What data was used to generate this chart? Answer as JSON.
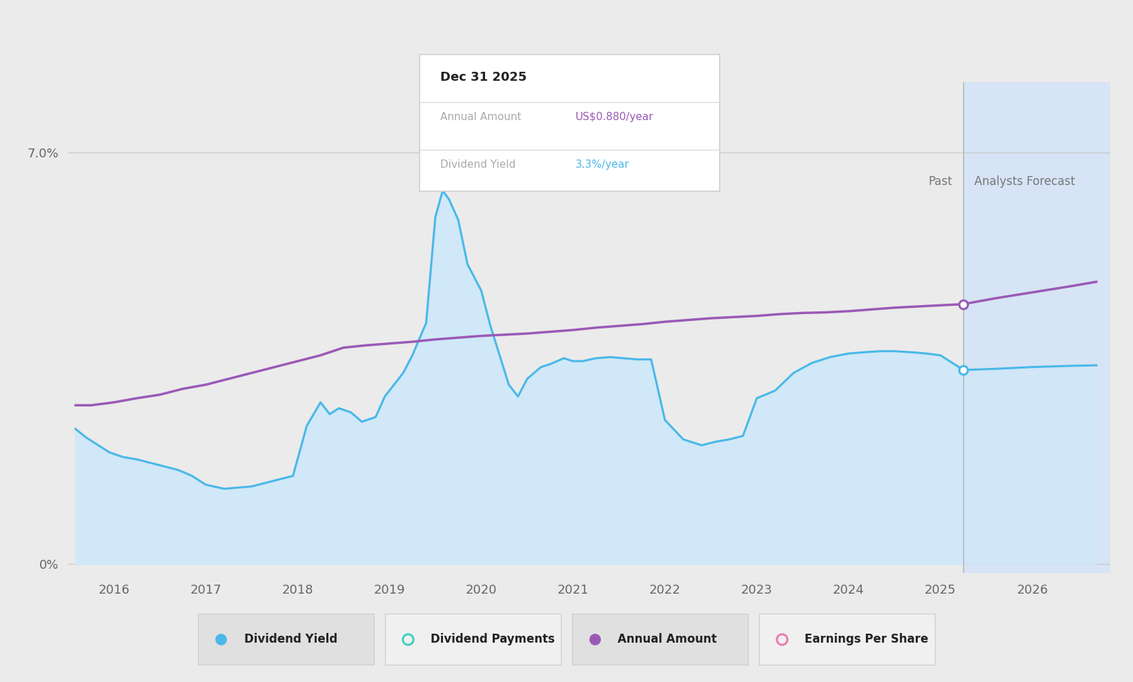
{
  "bg_color": "#ebebeb",
  "plot_bg_color": "#ebebeb",
  "forecast_bg_color": "#d6e4f5",
  "fill_color": "#d0e8f8",
  "yield_line_color": "#4ab8e8",
  "annual_line_color": "#9b59b6",
  "xlim_start": 2015.5,
  "xlim_end": 2026.85,
  "ylim_bottom": -0.15,
  "ylim_top": 8.2,
  "forecast_start": 2025.25,
  "y_display_max": 7.0,
  "tooltip_date": "Dec 31 2025",
  "tooltip_annual_label": "Annual Amount",
  "tooltip_annual_value": "US$0.880/year",
  "tooltip_yield_label": "Dividend Yield",
  "tooltip_yield_value": "3.3%/year",
  "past_label": "Past",
  "forecast_label": "Analysts Forecast",
  "dividend_yield_x": [
    2015.58,
    2015.7,
    2015.85,
    2015.95,
    2016.1,
    2016.25,
    2016.5,
    2016.7,
    2016.85,
    2017.0,
    2017.2,
    2017.5,
    2017.75,
    2017.95,
    2018.1,
    2018.25,
    2018.35,
    2018.45,
    2018.58,
    2018.7,
    2018.85,
    2018.95,
    2019.05,
    2019.15,
    2019.25,
    2019.4,
    2019.5,
    2019.58,
    2019.65,
    2019.75,
    2019.85,
    2020.0,
    2020.1,
    2020.2,
    2020.3,
    2020.4,
    2020.5,
    2020.65,
    2020.75,
    2020.9,
    2021.0,
    2021.1,
    2021.25,
    2021.4,
    2021.55,
    2021.7,
    2021.85,
    2022.0,
    2022.2,
    2022.4,
    2022.55,
    2022.7,
    2022.85,
    2023.0,
    2023.2,
    2023.4,
    2023.6,
    2023.8,
    2024.0,
    2024.15,
    2024.35,
    2024.5,
    2024.7,
    2024.85,
    2025.0,
    2025.25
  ],
  "dividend_yield_y": [
    2.3,
    2.15,
    2.0,
    1.9,
    1.82,
    1.78,
    1.68,
    1.6,
    1.5,
    1.35,
    1.28,
    1.32,
    1.42,
    1.5,
    2.35,
    2.75,
    2.55,
    2.65,
    2.58,
    2.42,
    2.5,
    2.85,
    3.05,
    3.25,
    3.55,
    4.1,
    5.9,
    6.35,
    6.2,
    5.85,
    5.1,
    4.65,
    4.05,
    3.55,
    3.05,
    2.85,
    3.15,
    3.35,
    3.4,
    3.5,
    3.45,
    3.45,
    3.5,
    3.52,
    3.5,
    3.48,
    3.48,
    2.45,
    2.12,
    2.02,
    2.08,
    2.12,
    2.18,
    2.82,
    2.95,
    3.25,
    3.42,
    3.52,
    3.58,
    3.6,
    3.62,
    3.62,
    3.6,
    3.58,
    3.55,
    3.3
  ],
  "annual_amount_x": [
    2015.58,
    2015.75,
    2016.0,
    2016.25,
    2016.5,
    2016.75,
    2017.0,
    2017.25,
    2017.5,
    2017.75,
    2018.0,
    2018.25,
    2018.5,
    2018.75,
    2019.0,
    2019.25,
    2019.5,
    2019.75,
    2020.0,
    2020.25,
    2020.5,
    2020.75,
    2021.0,
    2021.25,
    2021.5,
    2021.75,
    2022.0,
    2022.25,
    2022.5,
    2022.75,
    2023.0,
    2023.25,
    2023.5,
    2023.75,
    2024.0,
    2024.25,
    2024.5,
    2024.75,
    2025.0,
    2025.25,
    2025.6,
    2026.0,
    2026.4,
    2026.7
  ],
  "annual_amount_y": [
    2.7,
    2.7,
    2.75,
    2.82,
    2.88,
    2.98,
    3.05,
    3.15,
    3.25,
    3.35,
    3.45,
    3.55,
    3.68,
    3.72,
    3.75,
    3.78,
    3.82,
    3.85,
    3.88,
    3.9,
    3.92,
    3.95,
    3.98,
    4.02,
    4.05,
    4.08,
    4.12,
    4.15,
    4.18,
    4.2,
    4.22,
    4.25,
    4.27,
    4.28,
    4.3,
    4.33,
    4.36,
    4.38,
    4.4,
    4.42,
    4.52,
    4.62,
    4.72,
    4.8
  ],
  "forecast_yield_x": [
    2025.25,
    2025.6,
    2026.0,
    2026.4,
    2026.7
  ],
  "forecast_yield_y": [
    3.3,
    3.32,
    3.35,
    3.37,
    3.38
  ],
  "legend_items": [
    {
      "label": "Dividend Yield",
      "color": "#4ab8e8",
      "filled": true
    },
    {
      "label": "Dividend Payments",
      "color": "#40d0c0",
      "filled": false
    },
    {
      "label": "Annual Amount",
      "color": "#9b59b6",
      "filled": true
    },
    {
      "label": "Earnings Per Share",
      "color": "#e87db0",
      "filled": false
    }
  ]
}
